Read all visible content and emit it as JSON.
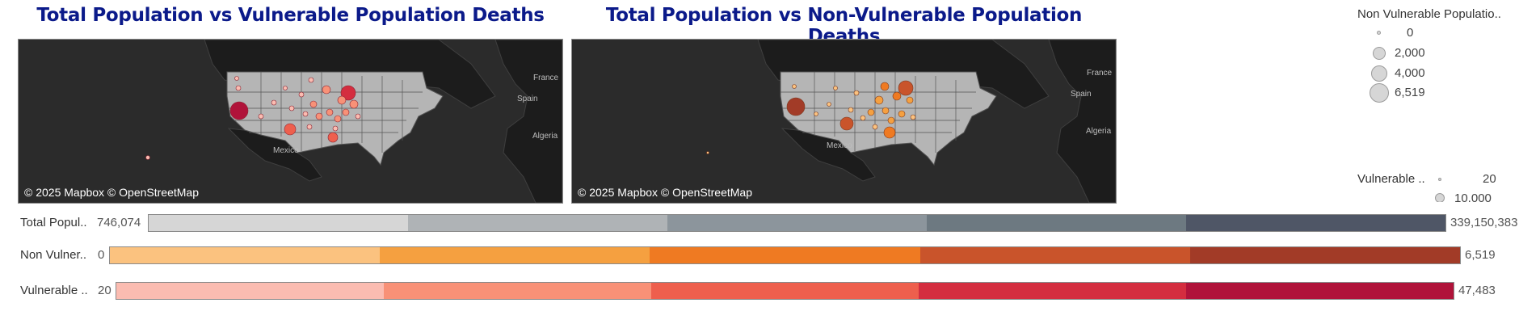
{
  "maps": [
    {
      "title": "Total Population vs Vulnerable Population Deaths",
      "attribution": "© 2025 Mapbox © OpenStreetMap",
      "place_labels": [
        "Mexico",
        "France",
        "Spain",
        "Algeria"
      ],
      "marker_color": "#e8644f"
    },
    {
      "title": "Total Population vs Non-Vulnerable Population Deaths",
      "attribution": "© 2025 Mapbox © OpenStreetMap",
      "place_labels": [
        "Mexico",
        "France",
        "Spain",
        "Algeria"
      ],
      "marker_color": "#ef8a33"
    }
  ],
  "legends": {
    "non_vulnerable": {
      "title": "Non Vulnerable Populatio..",
      "items": [
        "0",
        "2,000",
        "4,000",
        "6,519"
      ]
    },
    "vulnerable": {
      "title": "Vulnerable ..",
      "items": [
        "20",
        "10,000"
      ]
    }
  },
  "color_bars": [
    {
      "label": "Total Popul..",
      "min": "746,074",
      "max": "339,150,383",
      "colors": [
        "#d6d6d6",
        "#afb3b6",
        "#8c959c",
        "#6d7981",
        "#4f5666"
      ]
    },
    {
      "label": "Non Vulner..",
      "min": "0",
      "max": "6,519",
      "colors": [
        "#fbc27f",
        "#f5a040",
        "#ef7a22",
        "#c9542b",
        "#a23b27"
      ]
    },
    {
      "label": "Vulnerable ..",
      "min": "20",
      "max": "47,483",
      "colors": [
        "#fbbcb1",
        "#f89177",
        "#ee5f4d",
        "#d42d3f",
        "#b0133a"
      ]
    }
  ]
}
